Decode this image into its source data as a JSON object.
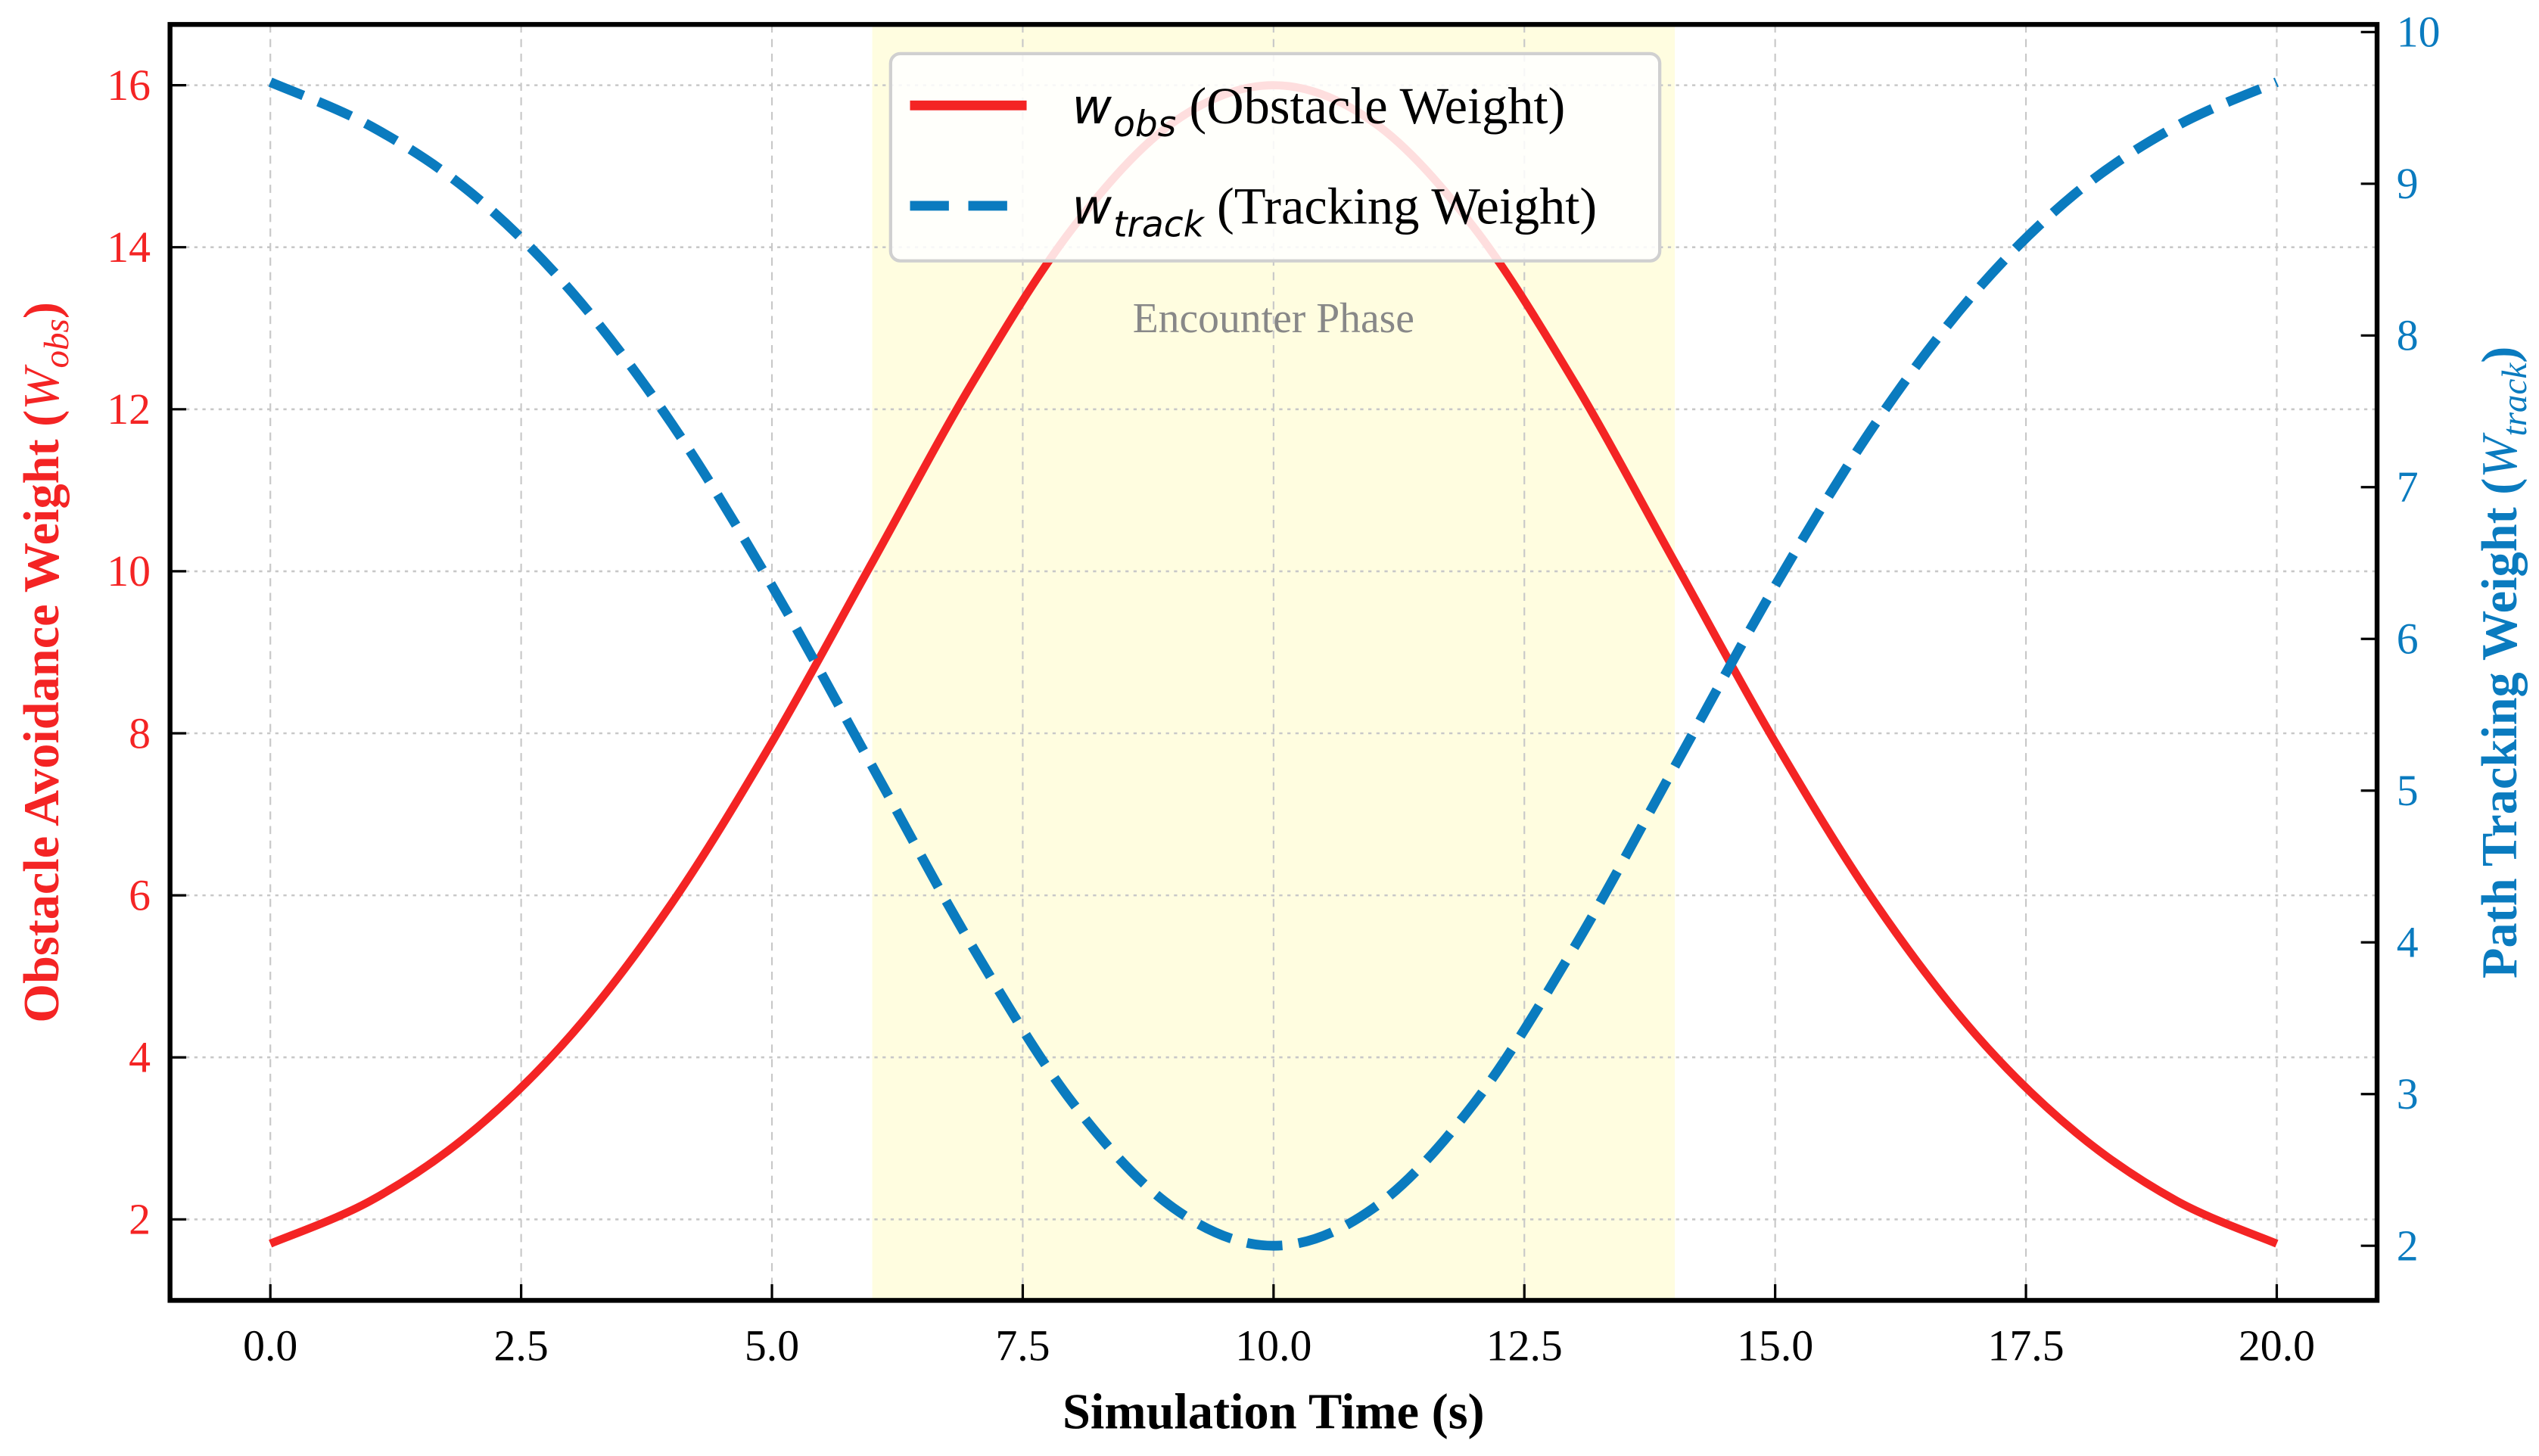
{
  "chart_data": {
    "type": "line",
    "xlabel": "Simulation Time (s)",
    "ylabel_left": {
      "prefix": "Obstacle Avoidance Weight (",
      "sym": "W",
      "sub": "obs",
      "suffix": ")"
    },
    "ylabel_right": {
      "prefix": "Path Tracking Weight (",
      "sym": "W",
      "sub": "track",
      "suffix": ")"
    },
    "xlim": [
      -1.0,
      21.0
    ],
    "ylim_left": [
      1.0,
      16.75
    ],
    "ylim_right": [
      1.64,
      10.05
    ],
    "x_ticks": [
      "0.0",
      "2.5",
      "5.0",
      "7.5",
      "10.0",
      "12.5",
      "15.0",
      "17.5",
      "20.0"
    ],
    "y_left_ticks": [
      "2",
      "4",
      "6",
      "8",
      "10",
      "12",
      "14",
      "16"
    ],
    "y_right_ticks": [
      "2",
      "3",
      "4",
      "5",
      "6",
      "7",
      "8",
      "9",
      "10"
    ],
    "grid": true,
    "shaded_region": {
      "x": [
        6,
        14
      ],
      "label": "Encounter Phase",
      "color": "#fffde0"
    },
    "x": [
      0,
      1,
      2,
      3,
      4,
      5,
      6,
      7,
      8,
      9,
      10,
      11,
      12,
      13,
      14,
      15,
      16,
      17,
      18,
      19,
      20
    ],
    "series": [
      {
        "name": "w_obs (Obstacle Weight)",
        "sym": "w",
        "sub": "obs",
        "desc": "(Obstacle Weight)",
        "axis": "left",
        "style": "solid",
        "color": "#f42424",
        "values": [
          1.7,
          2.23,
          3.07,
          4.28,
          5.9,
          7.89,
          10.11,
          12.33,
          14.24,
          15.54,
          16.0,
          15.54,
          14.24,
          12.33,
          10.11,
          7.89,
          5.9,
          4.28,
          3.07,
          2.23,
          1.7
        ]
      },
      {
        "name": "w_track (Tracking Weight)",
        "sym": "w",
        "sub": "track",
        "desc": "(Tracking Weight)",
        "axis": "right",
        "style": "dashed",
        "color": "#0a7bbf",
        "values": [
          9.67,
          9.38,
          8.94,
          8.29,
          7.42,
          6.35,
          5.16,
          3.97,
          2.94,
          2.25,
          2.0,
          2.25,
          2.94,
          3.97,
          5.16,
          6.35,
          7.42,
          8.29,
          8.94,
          9.38,
          9.67
        ]
      }
    ],
    "legend_position": "top-center"
  }
}
